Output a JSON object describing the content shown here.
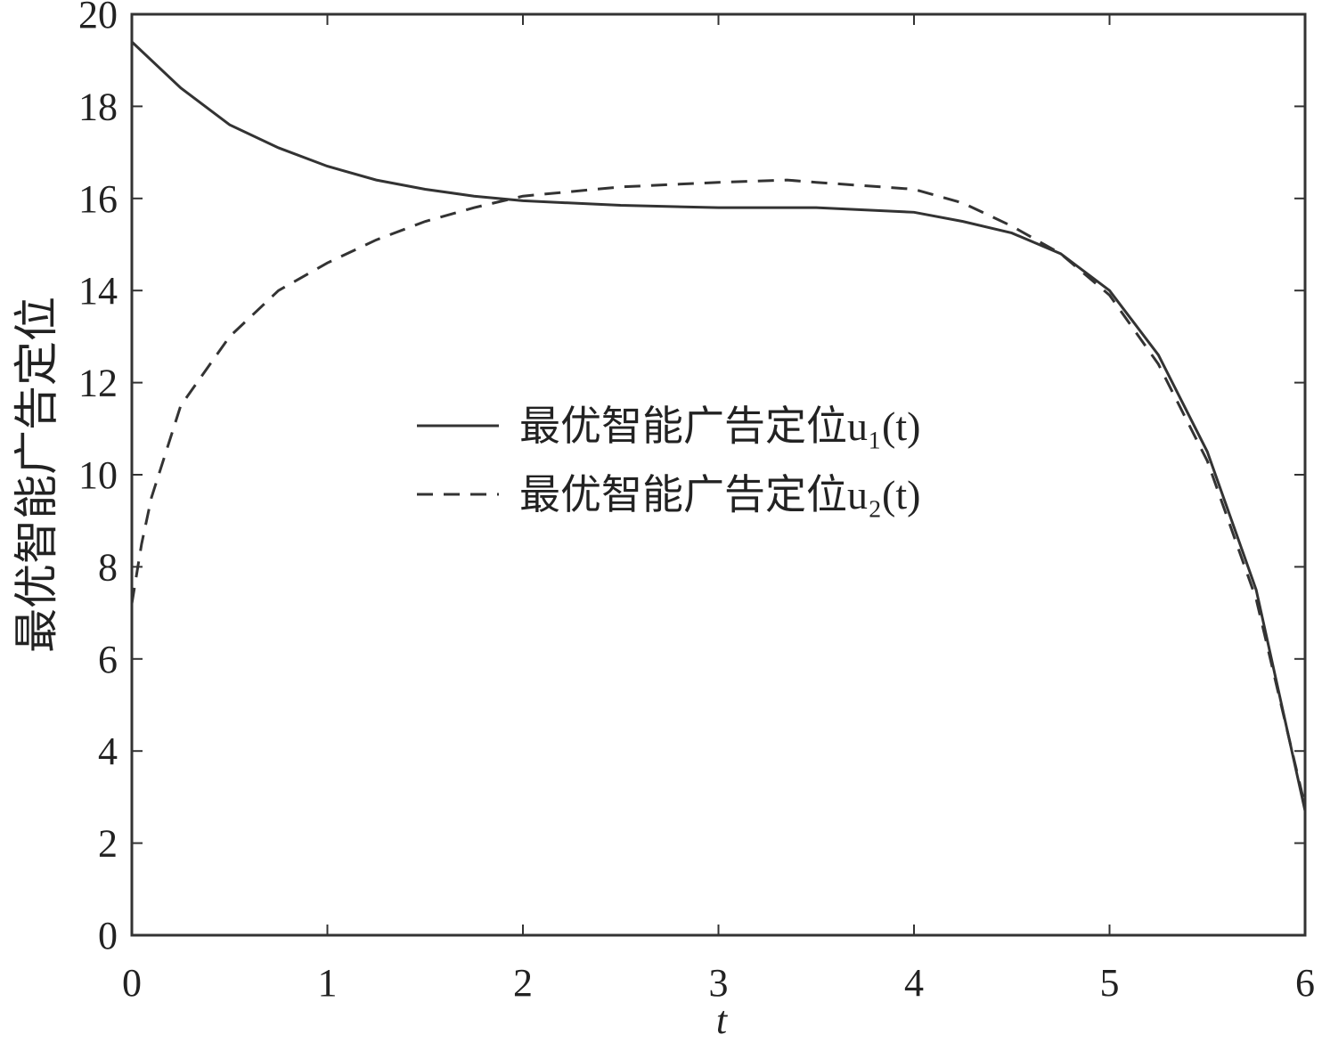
{
  "chart_data": {
    "type": "line",
    "y_label": "最优智能广告定位",
    "x_label": "t",
    "xlim": [
      0,
      6
    ],
    "xticks": [
      0,
      1,
      2,
      3,
      4,
      5,
      6
    ],
    "ylim": [
      0,
      20
    ],
    "yticks": [
      0,
      2,
      4,
      6,
      8,
      10,
      12,
      14,
      16,
      18,
      20
    ],
    "grid": false,
    "series": [
      {
        "name": "最优智能广告定位u₁(t)",
        "color": "#333333",
        "dash": "solid",
        "x": [
          0,
          0.25,
          0.5,
          0.75,
          1,
          1.25,
          1.5,
          1.75,
          2,
          2.5,
          3,
          3.5,
          4,
          4.25,
          4.5,
          4.75,
          5,
          5.25,
          5.5,
          5.75,
          6
        ],
        "values": [
          19.4,
          18.4,
          17.6,
          17.1,
          16.7,
          16.4,
          16.2,
          16.05,
          15.95,
          15.85,
          15.8,
          15.8,
          15.7,
          15.5,
          15.25,
          14.8,
          14.0,
          12.6,
          10.5,
          7.5,
          2.7
        ]
      },
      {
        "name": "最优智能广告定位u₂(t)",
        "color": "#333333",
        "dash": "dashed",
        "x": [
          0,
          0.05,
          0.1,
          0.25,
          0.5,
          0.75,
          1,
          1.25,
          1.5,
          1.75,
          2,
          2.5,
          3,
          3.35,
          3.5,
          4,
          4.25,
          4.5,
          4.75,
          5,
          5.25,
          5.5,
          5.75,
          6
        ],
        "values": [
          7.2,
          8.5,
          9.5,
          11.5,
          13.0,
          14.0,
          14.6,
          15.1,
          15.5,
          15.8,
          16.05,
          16.25,
          16.35,
          16.4,
          16.35,
          16.2,
          15.9,
          15.4,
          14.8,
          13.9,
          12.4,
          10.3,
          7.3,
          2.8
        ]
      }
    ]
  }
}
